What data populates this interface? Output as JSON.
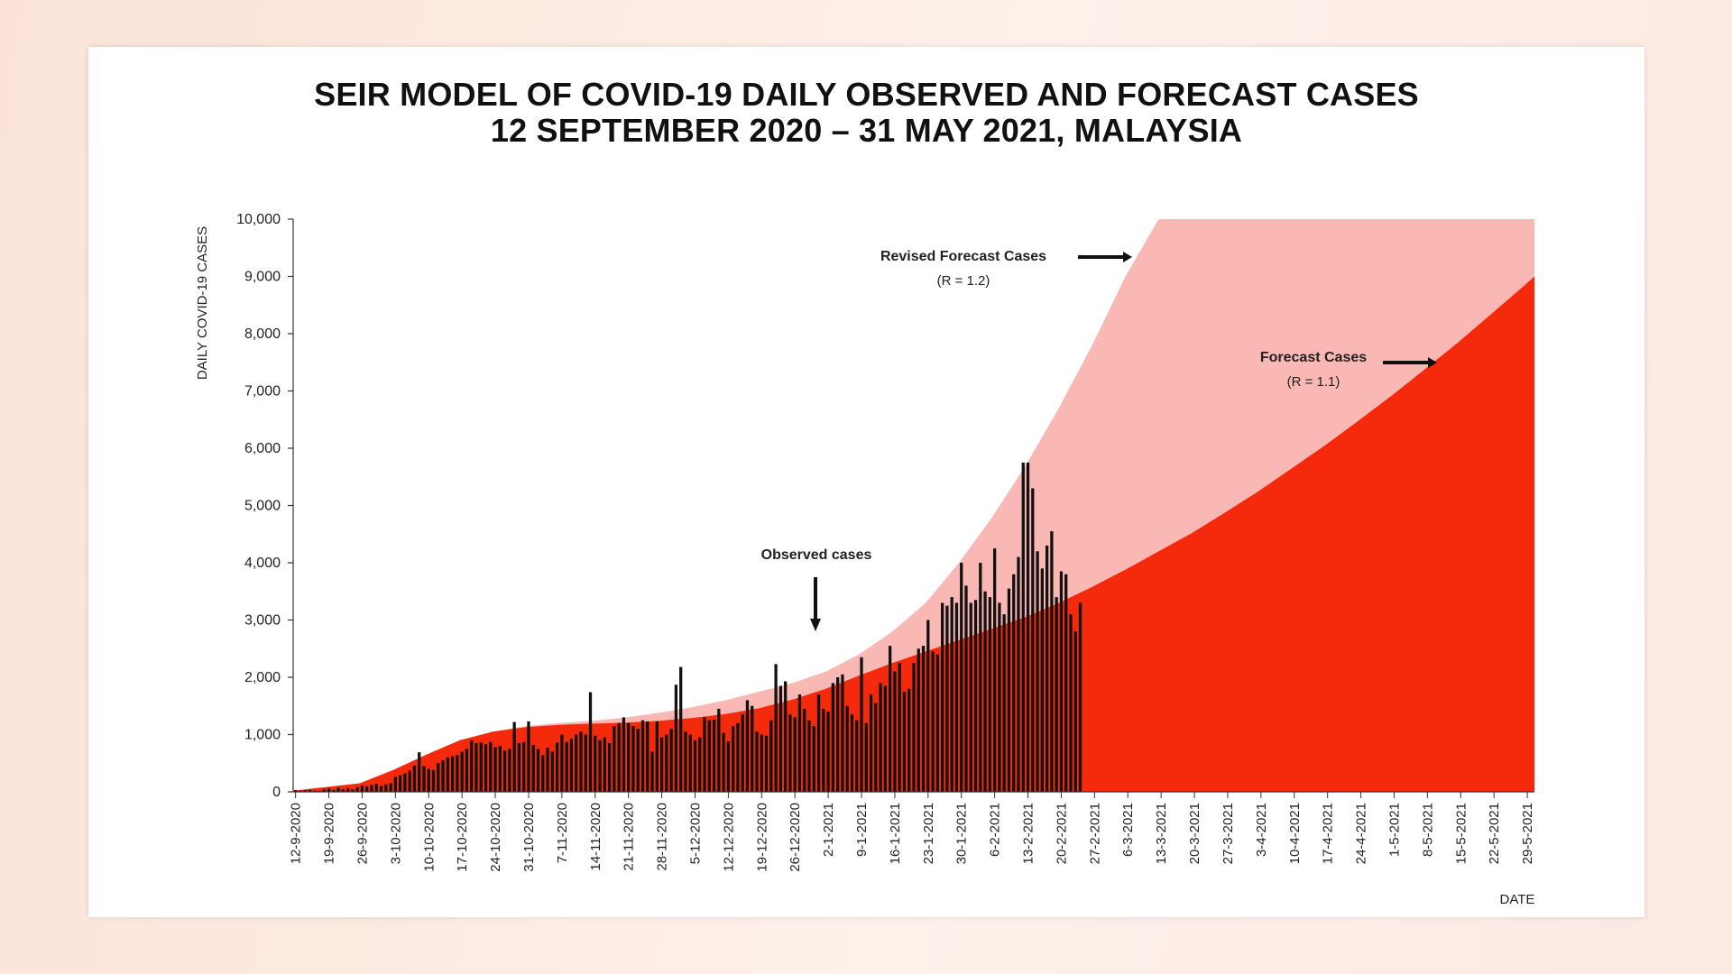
{
  "chart_data": {
    "type": "area",
    "title": "SEIR MODEL OF COVID-19 DAILY OBSERVED AND FORECAST CASES",
    "subtitle": "12 SEPTEMBER 2020 – 31 MAY 2021, MALAYSIA",
    "xlabel": "DATE",
    "ylabel": "DAILY COVID-19 CASES",
    "ylim": [
      0,
      10000
    ],
    "yticks": [
      "0",
      "1,000",
      "2,000",
      "3,000",
      "4,000",
      "5,000",
      "6,000",
      "7,000",
      "8,000",
      "9,000",
      "10,000"
    ],
    "x_start": "12-9-2020",
    "x_end": "31-5-2021",
    "xticks": [
      "12-9-2020",
      "19-9-2020",
      "26-9-2020",
      "3-10-2020",
      "10-10-2020",
      "17-10-2020",
      "24-10-2020",
      "31-10-2020",
      "7-11-2020",
      "14-11-2020",
      "21-11-2020",
      "28-11-2020",
      "5-12-2020",
      "12-12-2020",
      "19-12-2020",
      "26-12-2020",
      "2-1-2021",
      "9-1-2021",
      "16-1-2021",
      "23-1-2021",
      "30-1-2021",
      "6-2-2021",
      "13-2-2021",
      "20-2-2021",
      "27-2-2021",
      "6-3-2021",
      "13-3-2021",
      "20-3-2021",
      "27-3-2021",
      "3-4-2021",
      "10-4-2021",
      "17-4-2021",
      "24-4-2021",
      "1-5-2021",
      "8-5-2021",
      "15-5-2021",
      "22-5-2021",
      "29-5-2021"
    ],
    "grid": false,
    "series": [
      {
        "name": "Revised Forecast Cases",
        "note": "(R = 1.2)",
        "type": "area",
        "color": "#f9b8b4",
        "points": [
          [
            "12-9-2020",
            20
          ],
          [
            "26-9-2020",
            100
          ],
          [
            "3-10-2020",
            300
          ],
          [
            "10-10-2020",
            600
          ],
          [
            "17-10-2020",
            850
          ],
          [
            "24-10-2020",
            1050
          ],
          [
            "31-10-2020",
            1150
          ],
          [
            "7-11-2020",
            1200
          ],
          [
            "14-11-2020",
            1240
          ],
          [
            "21-11-2020",
            1300
          ],
          [
            "28-11-2020",
            1380
          ],
          [
            "5-12-2020",
            1480
          ],
          [
            "12-12-2020",
            1600
          ],
          [
            "19-12-2020",
            1750
          ],
          [
            "26-12-2020",
            1900
          ],
          [
            "2-1-2021",
            2100
          ],
          [
            "9-1-2021",
            2400
          ],
          [
            "16-1-2021",
            2800
          ],
          [
            "23-1-2021",
            3300
          ],
          [
            "30-1-2021",
            4000
          ],
          [
            "6-2-2021",
            4800
          ],
          [
            "13-2-2021",
            5700
          ],
          [
            "20-2-2021",
            6700
          ],
          [
            "27-2-2021",
            7800
          ],
          [
            "6-3-2021",
            9000
          ],
          [
            "13-3-2021",
            10000
          ],
          [
            "31-5-2021",
            10000
          ]
        ]
      },
      {
        "name": "Forecast Cases",
        "note": "(R = 1.1)",
        "type": "area",
        "color": "#f52a0c",
        "points": [
          [
            "12-9-2020",
            20
          ],
          [
            "26-9-2020",
            150
          ],
          [
            "3-10-2020",
            380
          ],
          [
            "10-10-2020",
            650
          ],
          [
            "17-10-2020",
            900
          ],
          [
            "24-10-2020",
            1050
          ],
          [
            "31-10-2020",
            1130
          ],
          [
            "7-11-2020",
            1170
          ],
          [
            "14-11-2020",
            1190
          ],
          [
            "21-11-2020",
            1210
          ],
          [
            "28-11-2020",
            1240
          ],
          [
            "5-12-2020",
            1290
          ],
          [
            "12-12-2020",
            1360
          ],
          [
            "19-12-2020",
            1460
          ],
          [
            "26-12-2020",
            1610
          ],
          [
            "2-1-2021",
            1800
          ],
          [
            "9-1-2021",
            2030
          ],
          [
            "16-1-2021",
            2250
          ],
          [
            "23-1-2021",
            2450
          ],
          [
            "30-1-2021",
            2650
          ],
          [
            "6-2-2021",
            2850
          ],
          [
            "13-2-2021",
            3050
          ],
          [
            "20-2-2021",
            3300
          ],
          [
            "27-2-2021",
            3580
          ],
          [
            "6-3-2021",
            3880
          ],
          [
            "13-3-2021",
            4200
          ],
          [
            "20-3-2021",
            4520
          ],
          [
            "27-3-2021",
            4880
          ],
          [
            "3-4-2021",
            5250
          ],
          [
            "10-4-2021",
            5650
          ],
          [
            "17-4-2021",
            6050
          ],
          [
            "24-4-2021",
            6480
          ],
          [
            "1-5-2021",
            6920
          ],
          [
            "8-5-2021",
            7380
          ],
          [
            "15-5-2021",
            7850
          ],
          [
            "22-5-2021",
            8350
          ],
          [
            "29-5-2021",
            8850
          ],
          [
            "31-5-2021",
            9000
          ]
        ]
      },
      {
        "name": "Observed cases",
        "type": "bar",
        "color": "#111111",
        "start_date": "12-9-2020",
        "values": [
          30,
          20,
          25,
          35,
          20,
          15,
          40,
          60,
          30,
          70,
          45,
          60,
          40,
          80,
          110,
          90,
          120,
          140,
          100,
          130,
          150,
          260,
          290,
          320,
          370,
          460,
          690,
          450,
          400,
          380,
          500,
          550,
          600,
          620,
          640,
          700,
          750,
          900,
          850,
          860,
          830,
          870,
          780,
          800,
          720,
          750,
          1220,
          850,
          870,
          1230,
          820,
          750,
          640,
          770,
          700,
          860,
          1000,
          870,
          930,
          1000,
          1050,
          1000,
          1740,
          980,
          900,
          950,
          850,
          1150,
          1200,
          1300,
          1200,
          1150,
          1100,
          1250,
          1230,
          700,
          1230,
          950,
          1000,
          1100,
          1870,
          2180,
          1050,
          1000,
          900,
          950,
          1300,
          1250,
          1260,
          1450,
          1030,
          880,
          1150,
          1200,
          1350,
          1600,
          1500,
          1050,
          1000,
          980,
          1250,
          2230,
          1850,
          1930,
          1350,
          1300,
          1700,
          1450,
          1250,
          1150,
          1700,
          1450,
          1400,
          1900,
          2000,
          2050,
          1500,
          1350,
          1250,
          2350,
          1200,
          1700,
          1550,
          1900,
          1850,
          2550,
          2100,
          2250,
          1750,
          1800,
          2250,
          2500,
          2550,
          3000,
          2450,
          2400,
          3300,
          3250,
          3400,
          3300,
          4000,
          3600,
          3300,
          3350,
          4000,
          3500,
          3400,
          4250,
          3300,
          3100,
          3550,
          3800,
          4100,
          5750,
          5750,
          5300,
          4200,
          3900,
          4300,
          4550,
          3400,
          3850,
          3800,
          3100,
          2800,
          3300
        ]
      }
    ],
    "annotations": [
      {
        "text": "Revised Forecast Cases",
        "sub": "(R = 1.2)"
      },
      {
        "text": "Forecast Cases",
        "sub": "(R = 1.1)"
      },
      {
        "text": "Observed cases"
      }
    ]
  }
}
